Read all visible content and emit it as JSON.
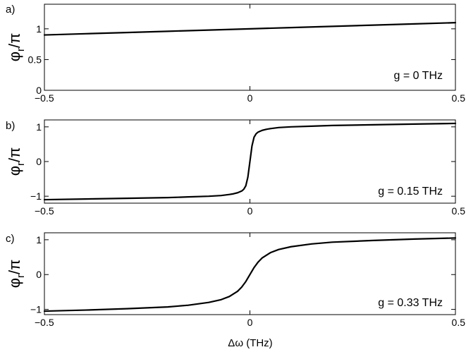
{
  "figure": {
    "xlabel": "Δω (THz)",
    "line_color": "#000000"
  },
  "chart_data": [
    {
      "type": "line",
      "panel_label": "a)",
      "ylabel_main": "φ",
      "ylabel_sub": "r",
      "ylabel_tail": "/π",
      "annotation": "g = 0 THz",
      "xlim": [
        -0.5,
        0.5
      ],
      "ylim": [
        0,
        1.4
      ],
      "xticks": [
        -0.5,
        0,
        0.5
      ],
      "xtick_labels": [
        "−0.5",
        "0",
        "0.5"
      ],
      "yticks": [
        0,
        0.5,
        1
      ],
      "ytick_labels": [
        "0",
        "0.5",
        "1"
      ],
      "grid": false,
      "series": [
        {
          "x": [
            -0.5,
            -0.4,
            -0.3,
            -0.2,
            -0.1,
            0,
            0.1,
            0.2,
            0.3,
            0.4,
            0.5
          ],
          "y": [
            0.9,
            0.92,
            0.94,
            0.96,
            0.98,
            1.0,
            1.02,
            1.04,
            1.06,
            1.08,
            1.1
          ]
        }
      ]
    },
    {
      "type": "line",
      "panel_label": "b)",
      "ylabel_main": "φ",
      "ylabel_sub": "r",
      "ylabel_tail": "/π",
      "annotation": "g = 0.15 THz",
      "xlim": [
        -0.5,
        0.5
      ],
      "ylim": [
        -1.2,
        1.2
      ],
      "xticks": [
        -0.5,
        0,
        0.5
      ],
      "xtick_labels": [
        "−0.5",
        "0",
        "0.5"
      ],
      "yticks": [
        -1,
        0,
        1
      ],
      "ytick_labels": [
        "−1",
        "0",
        "1"
      ],
      "grid": false,
      "series": [
        {
          "x": [
            -0.5,
            -0.4,
            -0.3,
            -0.2,
            -0.15,
            -0.1,
            -0.07,
            -0.05,
            -0.04,
            -0.03,
            -0.02,
            -0.015,
            -0.01,
            -0.005,
            0,
            0.005,
            0.01,
            0.015,
            0.02,
            0.03,
            0.04,
            0.05,
            0.07,
            0.1,
            0.15,
            0.2,
            0.3,
            0.4,
            0.5
          ],
          "y": [
            -1.1,
            -1.08,
            -1.06,
            -1.04,
            -1.02,
            -1.0,
            -0.98,
            -0.95,
            -0.93,
            -0.9,
            -0.85,
            -0.8,
            -0.7,
            -0.45,
            0,
            0.45,
            0.7,
            0.8,
            0.85,
            0.9,
            0.93,
            0.95,
            0.98,
            1.0,
            1.02,
            1.04,
            1.06,
            1.08,
            1.1
          ]
        }
      ]
    },
    {
      "type": "line",
      "panel_label": "c)",
      "ylabel_main": "φ",
      "ylabel_sub": "r",
      "ylabel_tail": "/π",
      "annotation": "g = 0.33 THz",
      "xlim": [
        -0.5,
        0.5
      ],
      "ylim": [
        -1.15,
        1.2
      ],
      "xticks": [
        -0.5,
        0,
        0.5
      ],
      "xtick_labels": [
        "−0.5",
        "0",
        "0.5"
      ],
      "yticks": [
        -1,
        0,
        1
      ],
      "ytick_labels": [
        "−1",
        "0",
        "1"
      ],
      "grid": false,
      "series": [
        {
          "x": [
            -0.5,
            -0.4,
            -0.3,
            -0.2,
            -0.15,
            -0.1,
            -0.07,
            -0.05,
            -0.03,
            -0.02,
            -0.01,
            0,
            0.01,
            0.02,
            0.03,
            0.05,
            0.07,
            0.1,
            0.15,
            0.2,
            0.3,
            0.4,
            0.5
          ],
          "y": [
            -1.05,
            -1.02,
            -0.98,
            -0.93,
            -0.88,
            -0.8,
            -0.72,
            -0.63,
            -0.48,
            -0.36,
            -0.2,
            0,
            0.2,
            0.36,
            0.48,
            0.63,
            0.72,
            0.8,
            0.88,
            0.93,
            0.98,
            1.02,
            1.05
          ]
        }
      ]
    }
  ]
}
